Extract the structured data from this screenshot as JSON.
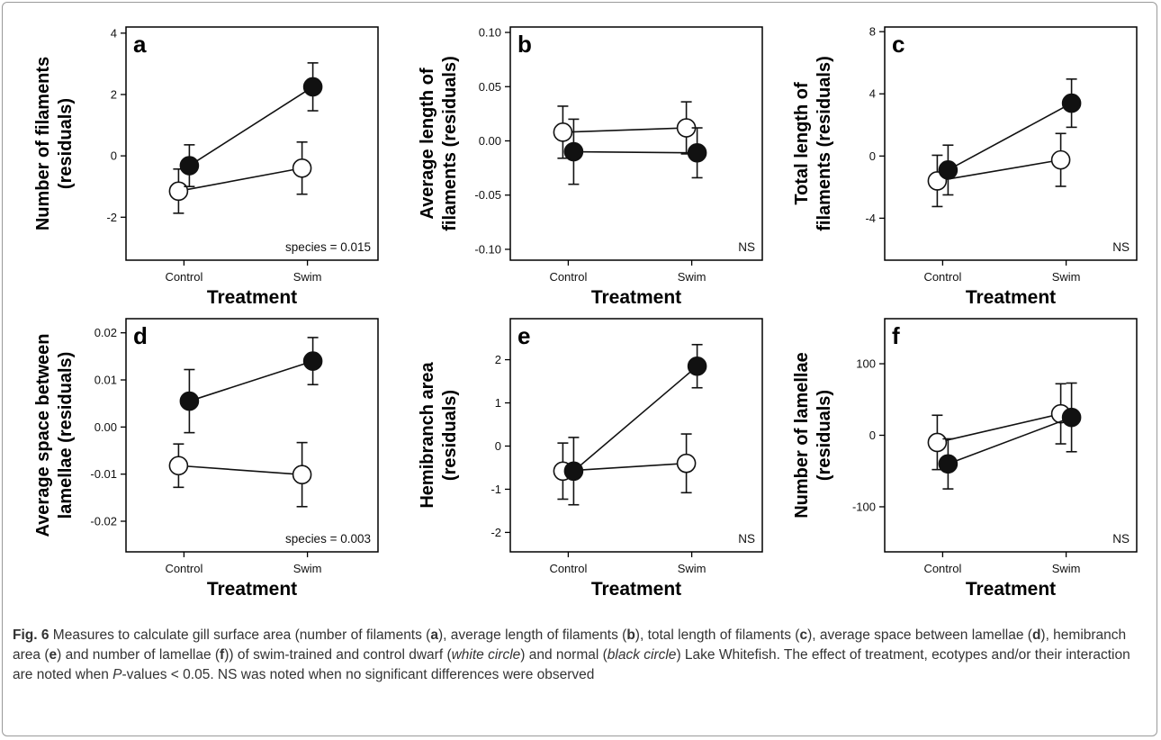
{
  "chart_data": [
    {
      "type": "scatter",
      "panel_letter": "a",
      "ylabel": [
        "Number of filaments",
        "(residuals)"
      ],
      "xlabel": "Treatment",
      "categories": [
        "Control",
        "Swim"
      ],
      "ylim": [
        -3.4,
        4.2
      ],
      "yticks": [
        -2,
        0,
        2,
        4
      ],
      "ytick_labels": [
        "-2",
        "0",
        "2",
        "4"
      ],
      "note": "species = 0.015",
      "series": [
        {
          "marker": "open-circle",
          "points": [
            {
              "x": 0,
              "y": -1.15,
              "err": 0.72
            },
            {
              "x": 1,
              "y": -0.4,
              "err": 0.85
            }
          ]
        },
        {
          "marker": "filled-circle",
          "points": [
            {
              "x": 0,
              "y": -0.32,
              "err": 0.68
            },
            {
              "x": 1,
              "y": 2.25,
              "err": 0.78
            }
          ]
        }
      ]
    },
    {
      "type": "scatter",
      "panel_letter": "b",
      "ylabel": [
        "Average length of",
        "filaments (residuals)"
      ],
      "xlabel": "Treatment",
      "categories": [
        "Control",
        "Swim"
      ],
      "ylim": [
        -0.11,
        0.105
      ],
      "yticks": [
        -0.1,
        -0.05,
        0.0,
        0.05,
        0.1
      ],
      "ytick_labels": [
        "-0.10",
        "-0.05",
        "0.00",
        "0.05",
        "0.10"
      ],
      "note": "NS",
      "series": [
        {
          "marker": "open-circle",
          "points": [
            {
              "x": 0,
              "y": 0.008,
              "err": 0.024
            },
            {
              "x": 1,
              "y": 0.012,
              "err": 0.024
            }
          ]
        },
        {
          "marker": "filled-circle",
          "points": [
            {
              "x": 0,
              "y": -0.01,
              "err": 0.03
            },
            {
              "x": 1,
              "y": -0.011,
              "err": 0.023
            }
          ]
        }
      ]
    },
    {
      "type": "scatter",
      "panel_letter": "c",
      "ylabel": [
        "Total length of",
        "filaments (residuals)"
      ],
      "xlabel": "Treatment",
      "categories": [
        "Control",
        "Swim"
      ],
      "ylim": [
        -6.7,
        8.3
      ],
      "yticks": [
        -4,
        0,
        4,
        8
      ],
      "ytick_labels": [
        "-4",
        "0",
        "4",
        "8"
      ],
      "note": "NS",
      "series": [
        {
          "marker": "open-circle",
          "points": [
            {
              "x": 0,
              "y": -1.6,
              "err": 1.65
            },
            {
              "x": 1,
              "y": -0.25,
              "err": 1.7
            }
          ]
        },
        {
          "marker": "filled-circle",
          "points": [
            {
              "x": 0,
              "y": -0.9,
              "err": 1.6
            },
            {
              "x": 1,
              "y": 3.4,
              "err": 1.55
            }
          ]
        }
      ]
    },
    {
      "type": "scatter",
      "panel_letter": "d",
      "ylabel": [
        "Average space between",
        "lamellae (residuals)"
      ],
      "xlabel": "Treatment",
      "categories": [
        "Control",
        "Swim"
      ],
      "ylim": [
        -0.0265,
        0.023
      ],
      "yticks": [
        -0.02,
        -0.01,
        0.0,
        0.01,
        0.02
      ],
      "ytick_labels": [
        "-0.02",
        "-0.01",
        "0.00",
        "0.01",
        "0.02"
      ],
      "note": "species = 0.003",
      "series": [
        {
          "marker": "open-circle",
          "points": [
            {
              "x": 0,
              "y": -0.0082,
              "err": 0.0046
            },
            {
              "x": 1,
              "y": -0.0101,
              "err": 0.0068
            }
          ]
        },
        {
          "marker": "filled-circle",
          "points": [
            {
              "x": 0,
              "y": 0.0055,
              "err": 0.0067
            },
            {
              "x": 1,
              "y": 0.014,
              "err": 0.005
            }
          ]
        }
      ]
    },
    {
      "type": "scatter",
      "panel_letter": "e",
      "ylabel": [
        "Hemibranch area",
        "(residuals)"
      ],
      "xlabel": "Treatment",
      "categories": [
        "Control",
        "Swim"
      ],
      "ylim": [
        -2.45,
        2.95
      ],
      "yticks": [
        -2,
        -1,
        0,
        1,
        2
      ],
      "ytick_labels": [
        "-2",
        "-1",
        "0",
        "1",
        "2"
      ],
      "note": "NS",
      "series": [
        {
          "marker": "open-circle",
          "points": [
            {
              "x": 0,
              "y": -0.58,
              "err": 0.65
            },
            {
              "x": 1,
              "y": -0.4,
              "err": 0.68
            }
          ]
        },
        {
          "marker": "filled-circle",
          "points": [
            {
              "x": 0,
              "y": -0.58,
              "err": 0.78
            },
            {
              "x": 1,
              "y": 1.85,
              "err": 0.5
            }
          ]
        }
      ]
    },
    {
      "type": "scatter",
      "panel_letter": "f",
      "ylabel": [
        "Number of lamellae",
        "(residuals)"
      ],
      "xlabel": "Treatment",
      "categories": [
        "Control",
        "Swim"
      ],
      "ylim": [
        -163,
        163
      ],
      "yticks": [
        -100,
        0,
        100
      ],
      "ytick_labels": [
        "-100",
        "0",
        "100"
      ],
      "note": "NS",
      "series": [
        {
          "marker": "open-circle",
          "points": [
            {
              "x": 0,
              "y": -10,
              "err": 38
            },
            {
              "x": 1,
              "y": 30,
              "err": 42
            }
          ]
        },
        {
          "marker": "filled-circle",
          "points": [
            {
              "x": 0,
              "y": -40,
              "err": 35
            },
            {
              "x": 1,
              "y": 25,
              "err": 48
            }
          ]
        }
      ]
    }
  ],
  "caption": {
    "fig_label": "Fig. 6",
    "segments": [
      {
        "t": " Measures to calculate gill surface area (number of filaments (",
        "s": "n"
      },
      {
        "t": "a",
        "s": "b"
      },
      {
        "t": "), average length of filaments (",
        "s": "n"
      },
      {
        "t": "b",
        "s": "b"
      },
      {
        "t": "), total length of filaments (",
        "s": "n"
      },
      {
        "t": "c",
        "s": "b"
      },
      {
        "t": "), average space between lamellae (",
        "s": "n"
      },
      {
        "t": "d",
        "s": "b"
      },
      {
        "t": "), hemibranch area (",
        "s": "n"
      },
      {
        "t": "e",
        "s": "b"
      },
      {
        "t": ") and number of lamellae (",
        "s": "n"
      },
      {
        "t": "f",
        "s": "b"
      },
      {
        "t": ")) of swim-trained and control dwarf (",
        "s": "n"
      },
      {
        "t": "white circle",
        "s": "i"
      },
      {
        "t": ") and normal (",
        "s": "n"
      },
      {
        "t": "black circle",
        "s": "i"
      },
      {
        "t": ") Lake Whitefish. The effect of treatment, ecotypes and/or their interaction are noted when ",
        "s": "n"
      },
      {
        "t": "P",
        "s": "i"
      },
      {
        "t": "-values < 0.05. NS was noted when no significant differences were observed",
        "s": "n"
      }
    ]
  }
}
